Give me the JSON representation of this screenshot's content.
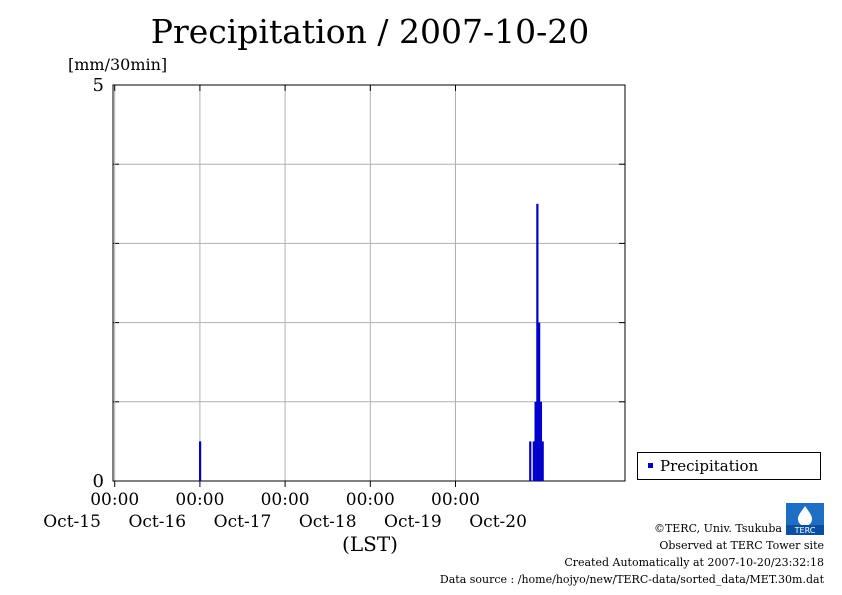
{
  "chart_data": {
    "type": "bar",
    "title": "Precipitation / 2007-10-20",
    "ylabel": "[mm/30min]",
    "xlabel": "(LST)",
    "ylim": [
      0,
      5
    ],
    "y_ticks": [
      "5",
      "0"
    ],
    "x_ticks": [
      {
        "time": "00:00",
        "date": "Oct-15",
        "day": 1
      },
      {
        "time": "00:00",
        "date": "Oct-16",
        "day": 2
      },
      {
        "time": "00:00",
        "date": "Oct-17",
        "day": 3
      },
      {
        "time": "00:00",
        "date": "Oct-18",
        "day": 4
      },
      {
        "time": "00:00",
        "date": "Oct-19",
        "day": 5
      },
      {
        "time": "",
        "date": "Oct-20",
        "day": 6
      }
    ],
    "series": [
      {
        "name": "Precipitation",
        "color": "#0000cc",
        "points": [
          {
            "t": "2007-10-16 00:00",
            "v": 0.5
          },
          {
            "t": "2007-10-19 21:00",
            "v": 0.5
          },
          {
            "t": "2007-10-19 22:00",
            "v": 0.5
          },
          {
            "t": "2007-10-19 22:30",
            "v": 1.0
          },
          {
            "t": "2007-10-19 23:00",
            "v": 3.5
          },
          {
            "t": "2007-10-19 23:30",
            "v": 2.0
          },
          {
            "t": "2007-10-20 00:00",
            "v": 1.0
          },
          {
            "t": "2007-10-20 00:30",
            "v": 0.5
          }
        ]
      }
    ],
    "grid": true,
    "legend_position": "right"
  },
  "legend_label": "Precipitation",
  "footer": {
    "copyright": "©TERC, Univ. Tsukuba",
    "site": "Observed at TERC Tower site",
    "created": "Created Automatically at 2007-10-20/23:32:18",
    "source": "Data source : /home/hojyo/new/TERC-data/sorted_data/MET.30m.dat"
  },
  "logo_text": "TERC"
}
